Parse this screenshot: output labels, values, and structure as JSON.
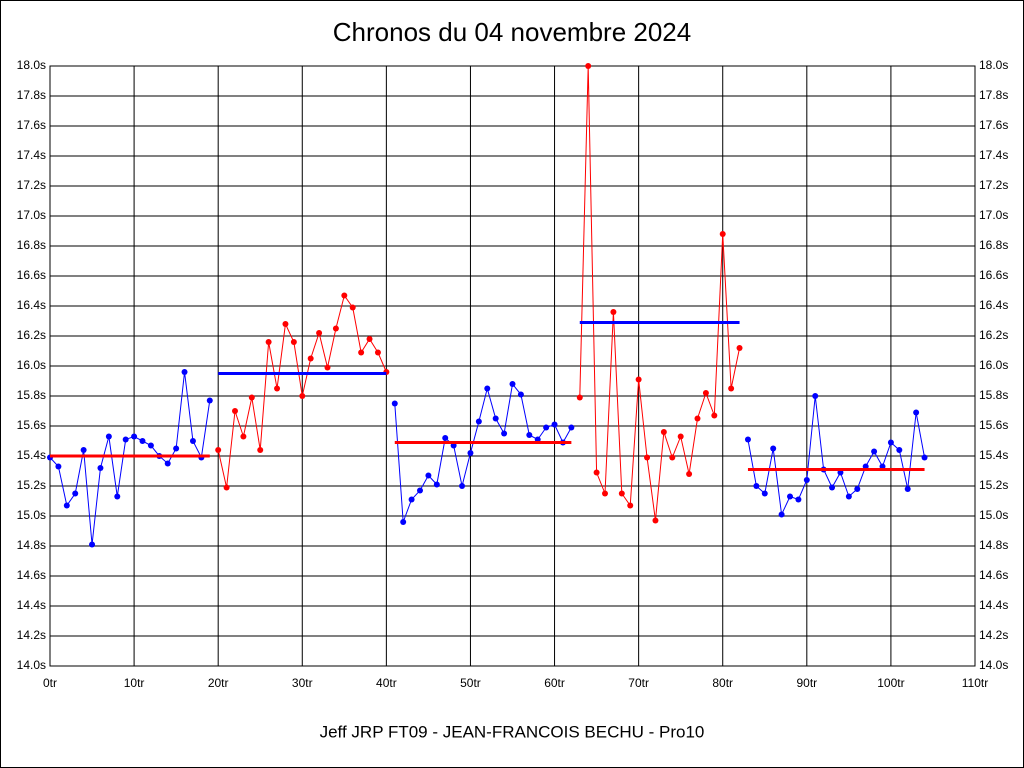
{
  "chart_data": {
    "type": "line",
    "title": "Chronos du 04 novembre 2024",
    "x_label": "Jeff JRP FT09 - JEAN-FRANCOIS BECHU - Pro10",
    "xlim": [
      0,
      110
    ],
    "ylim": [
      14.0,
      18.0
    ],
    "grid": true,
    "mirror_y_axis": true,
    "xticks": [
      {
        "value": 0,
        "label": "0tr"
      },
      {
        "value": 10,
        "label": "10tr"
      },
      {
        "value": 20,
        "label": "20tr"
      },
      {
        "value": 30,
        "label": "30tr"
      },
      {
        "value": 40,
        "label": "40tr"
      },
      {
        "value": 50,
        "label": "50tr"
      },
      {
        "value": 60,
        "label": "60tr"
      },
      {
        "value": 70,
        "label": "70tr"
      },
      {
        "value": 80,
        "label": "80tr"
      },
      {
        "value": 90,
        "label": "90tr"
      },
      {
        "value": 100,
        "label": "100tr"
      },
      {
        "value": 110,
        "label": "110tr"
      }
    ],
    "yticks": [
      {
        "value": 14.0,
        "label": "14.0s"
      },
      {
        "value": 14.2,
        "label": "14.2s"
      },
      {
        "value": 14.4,
        "label": "14.4s"
      },
      {
        "value": 14.6,
        "label": "14.6s"
      },
      {
        "value": 14.8,
        "label": "14.8s"
      },
      {
        "value": 15.0,
        "label": "15.0s"
      },
      {
        "value": 15.2,
        "label": "15.2s"
      },
      {
        "value": 15.4,
        "label": "15.4s"
      },
      {
        "value": 15.6,
        "label": "15.6s"
      },
      {
        "value": 15.8,
        "label": "15.8s"
      },
      {
        "value": 16.0,
        "label": "16.0s"
      },
      {
        "value": 16.2,
        "label": "16.2s"
      },
      {
        "value": 16.4,
        "label": "16.4s"
      },
      {
        "value": 16.6,
        "label": "16.6s"
      },
      {
        "value": 16.8,
        "label": "16.8s"
      },
      {
        "value": 17.0,
        "label": "17.0s"
      },
      {
        "value": 17.2,
        "label": "17.2s"
      },
      {
        "value": 17.4,
        "label": "17.4s"
      },
      {
        "value": 17.6,
        "label": "17.6s"
      },
      {
        "value": 17.8,
        "label": "17.8s"
      },
      {
        "value": 18.0,
        "label": "18.0s"
      }
    ],
    "series": [
      {
        "color": "#0000ff",
        "mean": 15.4,
        "mean_color": "#ff0000",
        "x": [
          0,
          1,
          2,
          3,
          4,
          5,
          6,
          7,
          8,
          9,
          10,
          11,
          12,
          13,
          14,
          15,
          16,
          17,
          18,
          19
        ],
        "values": [
          15.39,
          15.33,
          15.07,
          15.15,
          15.44,
          14.81,
          15.32,
          15.53,
          15.13,
          15.51,
          15.53,
          15.5,
          15.47,
          15.4,
          15.35,
          15.45,
          15.96,
          15.5,
          15.39,
          15.77
        ]
      },
      {
        "color": "#ff0000",
        "mean": 15.95,
        "mean_color": "#0000ff",
        "x": [
          20,
          21,
          22,
          23,
          24,
          25,
          26,
          27,
          28,
          29,
          30,
          31,
          32,
          33,
          34,
          35,
          36,
          37,
          38,
          39,
          40
        ],
        "values": [
          15.44,
          15.19,
          15.7,
          15.53,
          15.79,
          15.44,
          16.16,
          15.85,
          16.28,
          16.16,
          15.8,
          16.05,
          16.22,
          15.99,
          16.25,
          16.47,
          16.39,
          16.09,
          16.18,
          16.09,
          15.96
        ]
      },
      {
        "color": "#0000ff",
        "mean": 15.49,
        "mean_color": "#ff0000",
        "x": [
          41,
          42,
          43,
          44,
          45,
          46,
          47,
          48,
          49,
          50,
          51,
          52,
          53,
          54,
          55,
          56,
          57,
          58,
          59,
          60,
          61,
          62
        ],
        "values": [
          15.75,
          14.96,
          15.11,
          15.17,
          15.27,
          15.21,
          15.52,
          15.47,
          15.2,
          15.42,
          15.63,
          15.85,
          15.65,
          15.55,
          15.88,
          15.81,
          15.54,
          15.51,
          15.59,
          15.61,
          15.49,
          15.59
        ]
      },
      {
        "color": "#ff0000",
        "mean": 16.29,
        "mean_color": "#0000ff",
        "x": [
          63,
          64,
          65,
          66,
          67,
          68,
          69,
          70,
          71,
          72,
          73,
          74,
          75,
          76,
          77,
          78,
          79,
          80,
          81,
          82
        ],
        "values": [
          15.79,
          18.0,
          15.29,
          15.15,
          16.36,
          15.15,
          15.07,
          15.91,
          15.39,
          14.97,
          15.56,
          15.39,
          15.53,
          15.28,
          15.65,
          15.82,
          15.67,
          16.88,
          15.85,
          16.12
        ]
      },
      {
        "color": "#0000ff",
        "mean": 15.31,
        "mean_color": "#ff0000",
        "x": [
          83,
          84,
          85,
          86,
          87,
          88,
          89,
          90,
          91,
          92,
          93,
          94,
          95,
          96,
          97,
          98,
          99,
          100,
          101,
          102,
          103,
          104
        ],
        "values": [
          15.51,
          15.2,
          15.15,
          15.45,
          15.01,
          15.13,
          15.11,
          15.24,
          15.8,
          15.31,
          15.19,
          15.29,
          15.13,
          15.18,
          15.33,
          15.43,
          15.33,
          15.49,
          15.44,
          15.18,
          15.69,
          15.39
        ]
      }
    ]
  }
}
